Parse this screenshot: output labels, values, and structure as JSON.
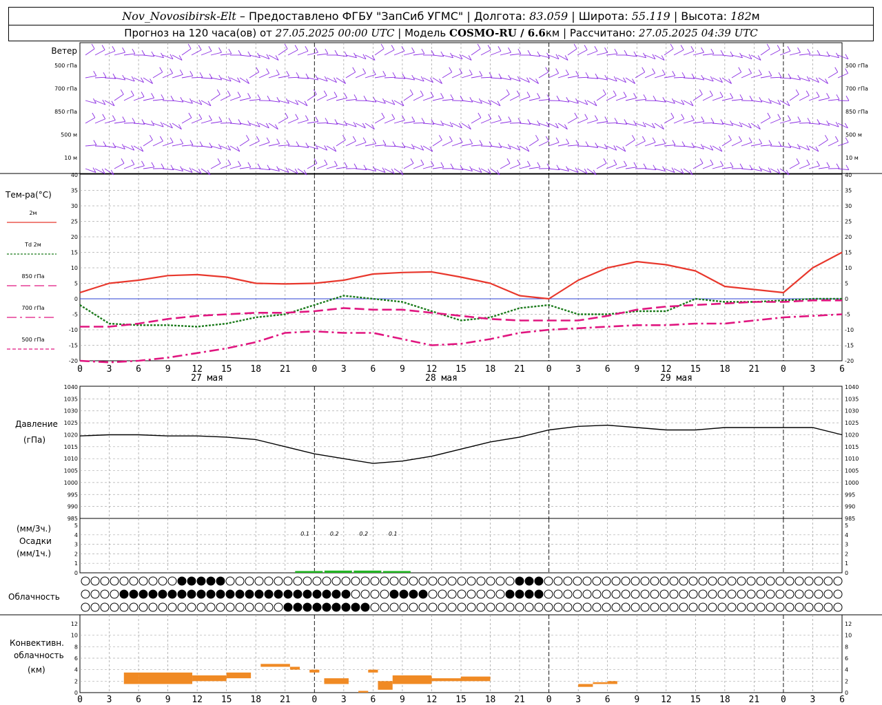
{
  "header": {
    "station": "Nov_Novosibirsk-Elt",
    "provider": "– Предоставлено ФГБУ \"ЗапСиб УГМС\"",
    "lon_label": "Долгота:",
    "lon": "83.059",
    "lat_label": "Широта:",
    "lat": "55.119",
    "alt_label": "Высота:",
    "alt": "182",
    "alt_unit": "м",
    "fc_prefix": "Прогноз на 120 часа(ов) от",
    "fc_time": "27.05.2025 00:00 UTC",
    "model_label": "Модель",
    "model": "COSMO-RU / 6.6",
    "model_unit": "км",
    "calc_label": "Рассчитано:",
    "calc_time": "27.05.2025 04:39 UTC"
  },
  "wind_panel": {
    "title": "Ветер",
    "levels": [
      "500 гПа",
      "700 гПа",
      "850 гПа",
      "500 м",
      "10 м"
    ],
    "color": "#8a2be2"
  },
  "temp_panel": {
    "title": "Тем-ра(°C)",
    "legend": [
      {
        "label": "2м",
        "color": "#e8372c",
        "dash": ""
      },
      {
        "label": "Td 2м",
        "color": "#1a7a1a",
        "dash": "3,2"
      },
      {
        "label": "850 гПа",
        "color": "#e0157f",
        "dash": "14,6"
      },
      {
        "label": "700 гПа",
        "color": "#e0157f",
        "dash": "14,5,3,5"
      },
      {
        "label": "500 гПа",
        "color": "#e0157f",
        "dash": "5,3"
      }
    ],
    "ylim": [
      -20,
      40
    ],
    "yticks": [
      "40",
      "35",
      "30",
      "25",
      "20",
      "15",
      "10",
      "5",
      "0",
      "-5",
      "-10",
      "-15",
      "-20"
    ]
  },
  "time_axis": {
    "hour_labels": [
      "0",
      "3",
      "6",
      "9",
      "12",
      "15",
      "18",
      "21",
      "0",
      "3",
      "6",
      "9",
      "12",
      "15",
      "18",
      "21",
      "0",
      "3",
      "6",
      "9",
      "12",
      "15",
      "18",
      "21",
      "0",
      "3",
      "6"
    ],
    "day_labels": [
      "27 мая",
      "28 мая",
      "29 мая"
    ]
  },
  "pressure_panel": {
    "title": "Давление",
    "unit": "(гПа)",
    "ylim": [
      985,
      1040
    ],
    "yticks": [
      "1040",
      "1035",
      "1030",
      "1025",
      "1020",
      "1015",
      "1010",
      "1005",
      "1000",
      "995",
      "990",
      "985"
    ]
  },
  "precip_panel": {
    "unit_3h": "(мм/3ч.)",
    "title": "Осадки",
    "unit_1h": "(мм/1ч.)",
    "yticks": [
      "5",
      "4",
      "3",
      "2",
      "1",
      "0"
    ],
    "amounts": [
      "0.1",
      "0.2",
      "0.2",
      "0.1"
    ]
  },
  "cloud_panel": {
    "title": "Облачность"
  },
  "conv_panel": {
    "title1": "Конвективн.",
    "title2": "облачность",
    "unit": "(км)",
    "yticks": [
      "12",
      "10",
      "8",
      "6",
      "4",
      "2",
      "0"
    ],
    "color": "#f08a24"
  },
  "chart_data": [
    {
      "type": "line",
      "title": "Тем-ра(°C)",
      "x_hours": [
        0,
        3,
        6,
        9,
        12,
        15,
        18,
        21,
        24,
        27,
        30,
        33,
        36,
        39,
        42,
        45,
        48,
        51,
        54,
        57,
        60,
        63,
        66,
        69,
        72,
        75,
        78
      ],
      "series": [
        {
          "name": "2м",
          "values": [
            2,
            5,
            6,
            7.5,
            7.8,
            7,
            5,
            4.8,
            5,
            6,
            8,
            8.5,
            8.7,
            7,
            5,
            1,
            0,
            6,
            10,
            12,
            11,
            9,
            4,
            3,
            2,
            10,
            15
          ]
        },
        {
          "name": "Td 2м",
          "values": [
            -2,
            -8,
            -8.5,
            -8.5,
            -9,
            -8,
            -6,
            -5,
            -2,
            1,
            0,
            -1,
            -4,
            -7,
            -6,
            -3,
            -2,
            -5,
            -5,
            -4,
            -4,
            0,
            -1,
            -1,
            -0.5,
            0,
            0
          ]
        },
        {
          "name": "850 гПа",
          "values": [
            -9,
            -9,
            -8,
            -6.5,
            -5.5,
            -5,
            -4.5,
            -4.5,
            -4,
            -3,
            -3.5,
            -3.5,
            -4.5,
            -5.5,
            -6.5,
            -7,
            -7,
            -7,
            -5.5,
            -3.5,
            -2.5,
            -2,
            -1.5,
            -1,
            -1,
            -0.5,
            -0.5
          ]
        },
        {
          "name": "700 гПа",
          "values": [
            -20,
            -20.5,
            -20,
            -19,
            -17.5,
            -16,
            -14,
            -11,
            -10.5,
            -11,
            -11,
            -13,
            -15,
            -14.5,
            -13,
            -11,
            -10,
            -9.5,
            -9,
            -8.5,
            -8.5,
            -8,
            -8,
            -7,
            -6,
            -5.5,
            -5
          ]
        },
        {
          "name": "500 гПа",
          "values": []
        }
      ]
    },
    {
      "type": "line",
      "title": "Давление",
      "x_hours": [
        0,
        3,
        6,
        9,
        12,
        15,
        18,
        21,
        24,
        27,
        30,
        33,
        36,
        39,
        42,
        45,
        48,
        51,
        54,
        57,
        60,
        63,
        66,
        69,
        72,
        75,
        78
      ],
      "series": [
        {
          "name": "Давление",
          "values": [
            1019.5,
            1020,
            1020,
            1019.5,
            1019.5,
            1019,
            1018,
            1015,
            1012,
            1010,
            1008,
            1009,
            1011,
            1014,
            1017,
            1019,
            1022,
            1023.5,
            1024,
            1023,
            1022,
            1022,
            1023,
            1023,
            1023,
            1023,
            1020
          ]
        }
      ],
      "ylim": [
        985,
        1040
      ]
    },
    {
      "type": "bar",
      "title": "Осадки",
      "x_hours": [
        24,
        27,
        30,
        33
      ],
      "values": [
        0.1,
        0.2,
        0.2,
        0.1
      ]
    },
    {
      "type": "bar",
      "title": "Конвективн. облачность",
      "segments": [
        {
          "x": 4.5,
          "x2": 6,
          "y1": 1.5,
          "y2": 3.5
        },
        {
          "x": 6,
          "x2": 11.5,
          "y1": 1.5,
          "y2": 3.5
        },
        {
          "x": 11.5,
          "x2": 15,
          "y1": 2,
          "y2": 3
        },
        {
          "x": 15,
          "x2": 17.5,
          "y1": 2.5,
          "y2": 3.5
        },
        {
          "x": 18.5,
          "x2": 21.5,
          "y1": 4.5,
          "y2": 5
        },
        {
          "x": 21.5,
          "x2": 22.5,
          "y1": 4,
          "y2": 4.5
        },
        {
          "x": 23.5,
          "x2": 24.5,
          "y1": 3.5,
          "y2": 4
        },
        {
          "x": 25,
          "x2": 27.5,
          "y1": 1.5,
          "y2": 2.5
        },
        {
          "x": 28.5,
          "x2": 29.5,
          "y1": 0,
          "y2": 0.3
        },
        {
          "x": 29.5,
          "x2": 30.5,
          "y1": 3.5,
          "y2": 4
        },
        {
          "x": 30.5,
          "x2": 32,
          "y1": 0.5,
          "y2": 2
        },
        {
          "x": 32,
          "x2": 36,
          "y1": 1.5,
          "y2": 3
        },
        {
          "x": 36,
          "x2": 39,
          "y1": 2,
          "y2": 2.5
        },
        {
          "x": 39,
          "x2": 42,
          "y1": 2,
          "y2": 2.8
        },
        {
          "x": 51,
          "x2": 52.5,
          "y1": 1,
          "y2": 1.5
        },
        {
          "x": 52.5,
          "x2": 54,
          "y1": 1.5,
          "y2": 1.8
        },
        {
          "x": 54,
          "x2": 55,
          "y1": 1.5,
          "y2": 2
        }
      ]
    }
  ],
  "colors": {
    "t2m": "#e8372c",
    "td": "#1a7a1a",
    "upper": "#e0157f",
    "precip": "#22b422",
    "zero_line": "#2b3fd6"
  }
}
